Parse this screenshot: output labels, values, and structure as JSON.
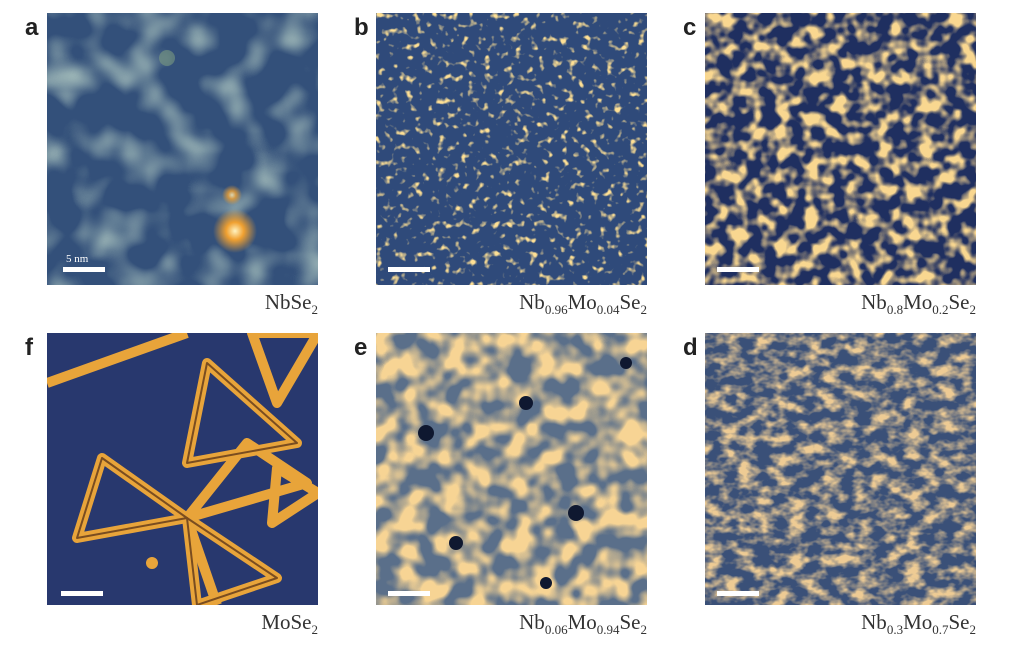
{
  "panels": [
    {
      "letter": "a",
      "caption": [
        [
          "Nb"
        ],
        [
          "Se",
          "2"
        ]
      ],
      "scale_label": "5 nm"
    },
    {
      "letter": "b",
      "caption": [
        [
          "Nb",
          "0.96"
        ],
        [
          "Mo",
          "0.04"
        ],
        [
          "Se",
          "2"
        ]
      ]
    },
    {
      "letter": "c",
      "caption": [
        [
          "Nb",
          "0.8"
        ],
        [
          "Mo",
          "0.2"
        ],
        [
          "Se",
          "2"
        ]
      ]
    },
    {
      "letter": "f",
      "caption": [
        [
          "Mo"
        ],
        [
          "Se",
          "2"
        ]
      ]
    },
    {
      "letter": "e",
      "caption": [
        [
          "Nb",
          "0.06"
        ],
        [
          "Mo",
          "0.94"
        ],
        [
          "Se",
          "2"
        ]
      ]
    },
    {
      "letter": "d",
      "caption": [
        [
          "Nb",
          "0.3"
        ],
        [
          "Mo",
          "0.7"
        ],
        [
          "Se",
          "2"
        ]
      ]
    }
  ]
}
